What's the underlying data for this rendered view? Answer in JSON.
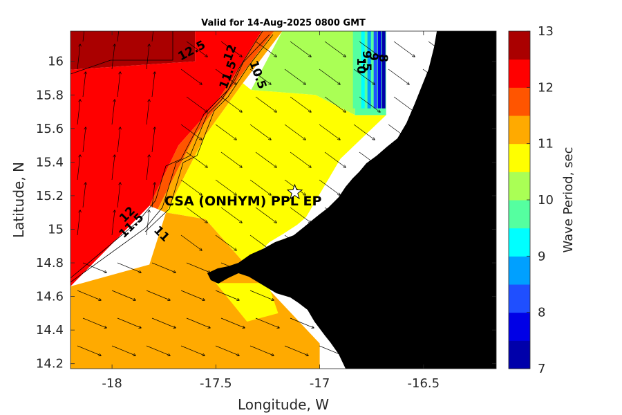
{
  "chart_data": {
    "type": "heatmap",
    "title": "Valid for 14-Aug-2025 0800 GMT",
    "xlabel": "Longitude, W",
    "ylabel": "Latitude, N",
    "xlim": [
      -18.2,
      -16.15
    ],
    "ylim": [
      14.17,
      16.18
    ],
    "xticks": [
      -18,
      -17.5,
      -17,
      -16.5
    ],
    "yticks": [
      14.2,
      14.4,
      14.6,
      14.8,
      15,
      15.2,
      15.4,
      15.6,
      15.8,
      16
    ],
    "colorbar": {
      "label": "Wave Period, sec",
      "min": 7,
      "max": 13,
      "ticks": [
        7,
        8,
        9,
        10,
        11,
        12,
        13
      ],
      "colors": [
        "#0000aa",
        "#0000e6",
        "#1f4fff",
        "#00a0ff",
        "#00ffff",
        "#55ffa0",
        "#aaff55",
        "#ffff00",
        "#ffaa00",
        "#ff5500",
        "#ff0000",
        "#aa0000"
      ]
    },
    "regions": [
      {
        "period_range": "12.5-13",
        "polygon": [
          [
            -18.2,
            16.18
          ],
          [
            -17.6,
            16.18
          ],
          [
            -17.6,
            16.0
          ],
          [
            -18.2,
            15.95
          ]
        ]
      },
      {
        "period_range": "12-12.5",
        "polygon": [
          [
            -18.2,
            15.95
          ],
          [
            -17.6,
            16.0
          ],
          [
            -17.6,
            16.18
          ],
          [
            -17.28,
            16.18
          ],
          [
            -17.42,
            15.9
          ],
          [
            -17.5,
            15.75
          ],
          [
            -17.68,
            15.5
          ],
          [
            -17.82,
            15.14
          ],
          [
            -18.2,
            14.66
          ]
        ]
      },
      {
        "period_range": "11.5-12",
        "polygon": [
          [
            -17.28,
            16.18
          ],
          [
            -17.22,
            16.18
          ],
          [
            -17.4,
            15.88
          ],
          [
            -17.6,
            15.56
          ],
          [
            -17.78,
            15.12
          ],
          [
            -17.82,
            15.14
          ],
          [
            -17.68,
            15.5
          ],
          [
            -17.5,
            15.75
          ],
          [
            -17.42,
            15.9
          ]
        ]
      },
      {
        "period_range": "11-11.5",
        "polygon": [
          [
            -17.22,
            16.18
          ],
          [
            -17.18,
            16.18
          ],
          [
            -17.37,
            15.87
          ],
          [
            -17.55,
            15.56
          ],
          [
            -17.74,
            15.1
          ],
          [
            -17.78,
            15.12
          ],
          [
            -17.6,
            15.56
          ],
          [
            -17.4,
            15.88
          ]
        ]
      },
      {
        "period_range": "10-10.5",
        "polygon": [
          [
            -17.18,
            16.18
          ],
          [
            -16.83,
            16.18
          ],
          [
            -16.83,
            15.68
          ],
          [
            -17.02,
            15.8
          ],
          [
            -17.33,
            15.83
          ]
        ]
      },
      {
        "period_range": "10.5-11",
        "polygon": [
          [
            -17.37,
            15.87
          ],
          [
            -17.33,
            15.83
          ],
          [
            -17.02,
            15.8
          ],
          [
            -16.83,
            15.68
          ],
          [
            -16.68,
            15.68
          ],
          [
            -16.9,
            15.42
          ],
          [
            -17.1,
            15.0
          ],
          [
            -17.35,
            14.78
          ],
          [
            -17.55,
            15.06
          ],
          [
            -17.74,
            15.1
          ],
          [
            -17.55,
            15.56
          ]
        ]
      },
      {
        "period_range": "11-11.5",
        "polygon": [
          [
            -18.2,
            14.66
          ],
          [
            -17.82,
            14.79
          ],
          [
            -17.74,
            15.1
          ],
          [
            -17.55,
            15.06
          ],
          [
            -17.35,
            14.78
          ],
          [
            -17.0,
            14.32
          ],
          [
            -17.0,
            14.17
          ],
          [
            -18.2,
            14.17
          ]
        ]
      },
      {
        "period_range": "10.5-11",
        "polygon": [
          [
            -17.5,
            14.68
          ],
          [
            -17.25,
            14.68
          ],
          [
            -17.2,
            14.5
          ],
          [
            -17.35,
            14.45
          ]
        ]
      },
      {
        "period_range": "9.5-10",
        "polygon": [
          [
            -16.83,
            16.18
          ],
          [
            -16.68,
            16.18
          ],
          [
            -16.68,
            15.68
          ],
          [
            -16.83,
            15.68
          ]
        ]
      }
    ],
    "contour_labels": [
      "12.5",
      "12",
      "11.5",
      "10.5",
      "12",
      "11.5",
      "11",
      "10",
      "9.5",
      "9",
      "8"
    ],
    "annotations": [
      {
        "text": "CSA (ONHYM) PPL EP",
        "x": -17.4,
        "y": 15.17
      },
      {
        "text": "☆",
        "x": -17.12,
        "y": 15.22
      }
    ],
    "grid": false
  }
}
